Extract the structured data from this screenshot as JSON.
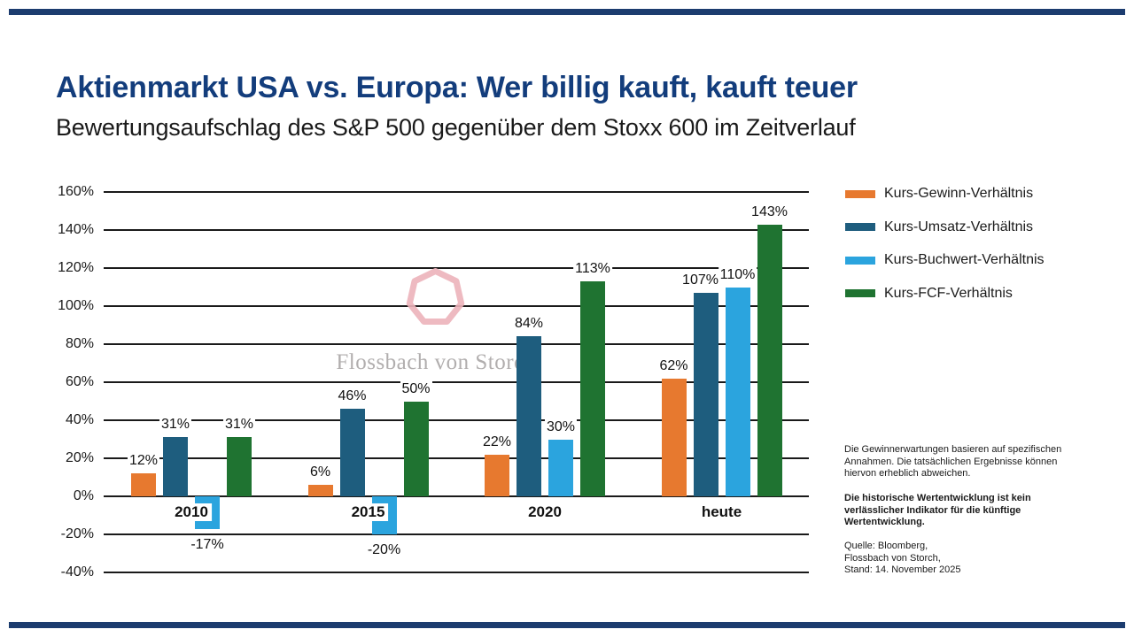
{
  "page": {
    "title": "Aktienmarkt USA vs. Europa: Wer billig kauft, kauft teuer",
    "subtitle": "Bewertungsaufschlag des S&P 500 gegenüber dem Stoxx 600 im Zeitverlauf"
  },
  "watermark": {
    "wordmark": "Flossbach von Storch",
    "logo_icon": "heptagon-ring"
  },
  "chart_data": {
    "type": "bar",
    "categories": [
      "2010",
      "2015",
      "2020",
      "heute"
    ],
    "series": [
      {
        "name": "Kurs-Gewinn-Verhältnis",
        "color": "#e7792f",
        "values": [
          12,
          6,
          22,
          62
        ]
      },
      {
        "name": "Kurs-Umsatz-Verhältnis",
        "color": "#1e5d7e",
        "values": [
          31,
          46,
          84,
          107
        ]
      },
      {
        "name": "Kurs-Buchwert-Verhältnis",
        "color": "#2ba4de",
        "values": [
          -17,
          -20,
          30,
          110
        ]
      },
      {
        "name": "Kurs-FCF-Verhältnis",
        "color": "#1f7331",
        "values": [
          31,
          50,
          113,
          143
        ]
      }
    ],
    "value_label_format": "{v}%",
    "ylim": [
      -40,
      160
    ],
    "ytick_step": 20,
    "ytick_format": "{v}%",
    "grid": true,
    "legend_position": "right",
    "title": "Bewertungsaufschlag des S&P 500 gegenüber dem Stoxx 600 im Zeitverlauf"
  },
  "disclaimer": {
    "para1": "Die Gewinnerwartungen basieren auf spezifischen\nAnnahmen. Die tatsächlichen Ergebnisse können\nhiervon erheblich abweichen.",
    "para2_bold": "Die historische Wertentwicklung ist kein\nverlässlicher Indikator für die künftige\nWertentwicklung.",
    "para3": "Quelle: Bloomberg,\nFlossbach von Storch,\nStand: 14. November 2025"
  },
  "colors": {
    "title_navy": "#133d7c",
    "rule_navy": "#1c3c6f",
    "gridline": "#1a1a1a",
    "watermark_pink": "#ecb2ba",
    "watermark_gray": "#b1aeae"
  }
}
